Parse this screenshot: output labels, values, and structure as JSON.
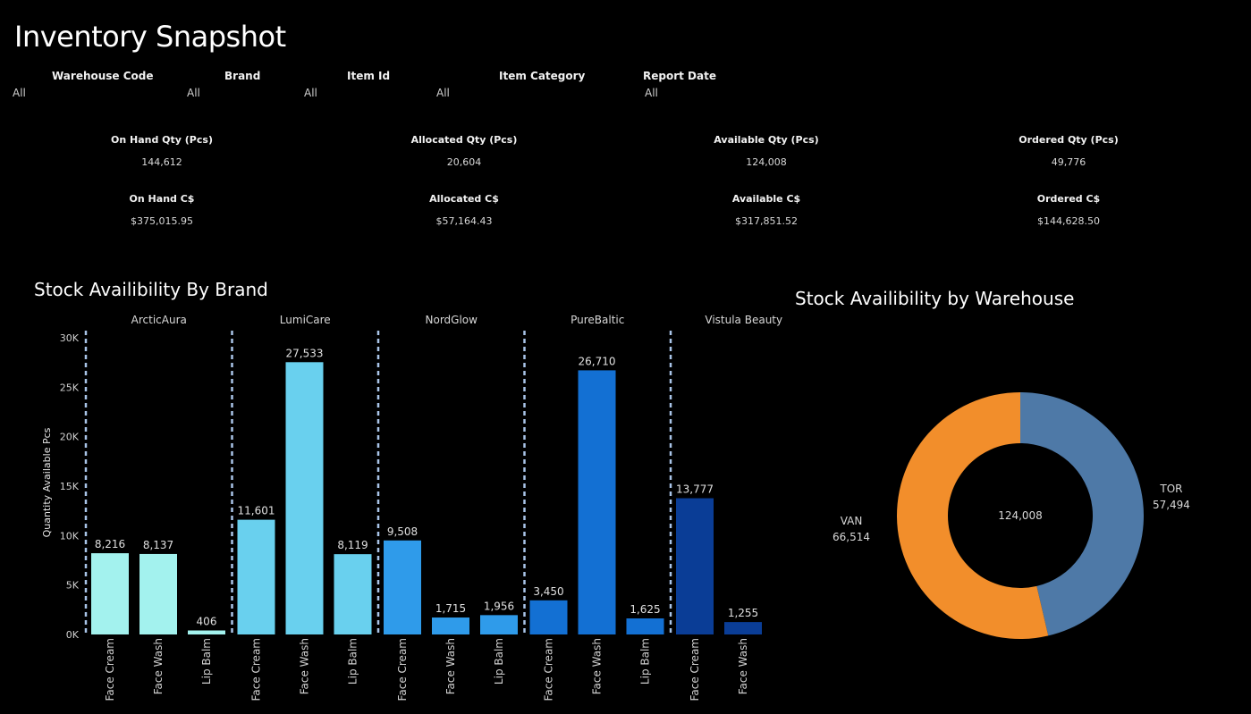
{
  "page": {
    "title": "Inventory Snapshot"
  },
  "filters": [
    {
      "label": "Warehouse Code",
      "value": "All"
    },
    {
      "label": "Brand",
      "value": "All"
    },
    {
      "label": "Item Id",
      "value": "All"
    },
    {
      "label": "Item Category",
      "value": "All"
    },
    {
      "label": "Report Date",
      "value": "All"
    }
  ],
  "kpis": {
    "qty": [
      {
        "label": "On Hand Qty (Pcs)",
        "value": "144,612"
      },
      {
        "label": "Allocated Qty (Pcs)",
        "value": "20,604"
      },
      {
        "label": "Available Qty (Pcs)",
        "value": "124,008"
      },
      {
        "label": "Ordered Qty (Pcs)",
        "value": "49,776"
      }
    ],
    "money": [
      {
        "label": "On Hand C$",
        "value": "$375,015.95"
      },
      {
        "label": "Allocated C$",
        "value": "$57,164.43"
      },
      {
        "label": "Available C$",
        "value": "$317,851.52"
      },
      {
        "label": "Ordered C$",
        "value": "$144,628.50"
      }
    ]
  },
  "chart_data": [
    {
      "type": "bar",
      "title": "Stock Availibility By Brand",
      "ylabel": "Quantity Available Pcs",
      "xlabel": "",
      "ylim": [
        0,
        30000
      ],
      "yticks": [
        0,
        5000,
        10000,
        15000,
        20000,
        25000,
        30000
      ],
      "ytick_labels": [
        "0K",
        "5K",
        "10K",
        "15K",
        "20K",
        "25K",
        "30K"
      ],
      "groups": [
        {
          "name": "ArcticAura",
          "color": "#a3f2ee",
          "categories": [
            "Face Cream",
            "Face Wash",
            "Lip Balm"
          ],
          "values": [
            8216,
            8137,
            406
          ],
          "labels": [
            "8,216",
            "8,137",
            "406"
          ]
        },
        {
          "name": "LumiCare",
          "color": "#69d0ee",
          "categories": [
            "Face Cream",
            "Face Wash",
            "Lip Balm"
          ],
          "values": [
            11601,
            27533,
            8119
          ],
          "labels": [
            "11,601",
            "27,533",
            "8,119"
          ]
        },
        {
          "name": "NordGlow",
          "color": "#2f9bea",
          "categories": [
            "Face Cream",
            "Face Wash",
            "Lip Balm"
          ],
          "values": [
            9508,
            1715,
            1956
          ],
          "labels": [
            "9,508",
            "1,715",
            "1,956"
          ]
        },
        {
          "name": "PureBaltic",
          "color": "#1370d3",
          "categories": [
            "Face Cream",
            "Face Wash",
            "Lip Balm"
          ],
          "values": [
            3450,
            26710,
            1625
          ],
          "labels": [
            "3,450",
            "26,710",
            "1,625"
          ]
        },
        {
          "name": "Vistula Beauty",
          "color": "#0a3d96",
          "categories": [
            "Face Cream",
            "Face Wash"
          ],
          "values": [
            13777,
            1255
          ],
          "labels": [
            "13,777",
            "1,255"
          ]
        }
      ],
      "grid": false
    },
    {
      "type": "pie",
      "title": "Stock Availibility by Warehouse",
      "center_label": "124,008",
      "slices": [
        {
          "name": "TOR",
          "value": 57494,
          "label": "57,494",
          "color": "#4e79a7"
        },
        {
          "name": "VAN",
          "value": 66514,
          "label": "66,514",
          "color": "#f28e2b"
        }
      ]
    }
  ]
}
